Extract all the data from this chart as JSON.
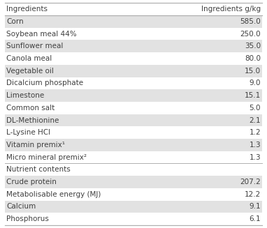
{
  "header": [
    "Ingredients",
    "Ingredients g/kg"
  ],
  "rows": [
    [
      "Corn",
      "585.0"
    ],
    [
      "Soybean meal 44%",
      "250.0"
    ],
    [
      "Sunflower meal",
      "35.0"
    ],
    [
      "Canola meal",
      "80.0"
    ],
    [
      "Vegetable oil",
      "15.0"
    ],
    [
      "Dicalcium phosphate",
      "9.0"
    ],
    [
      "Limestone",
      "15.1"
    ],
    [
      "Common salt",
      "5.0"
    ],
    [
      "DL-Methionine",
      "2.1"
    ],
    [
      "L-Lysine HCl",
      "1.2"
    ],
    [
      "Vitamin premix¹",
      "1.3"
    ],
    [
      "Micro mineral premix²",
      "1.3"
    ],
    [
      "Nutrient contents",
      ""
    ],
    [
      "Crude protein",
      "207.2"
    ],
    [
      "Metabolisable energy (MJ)",
      "12.2"
    ],
    [
      "Calcium",
      "9.1"
    ],
    [
      "Phosphorus",
      "6.1"
    ]
  ],
  "shaded_rows": [
    0,
    2,
    4,
    6,
    8,
    10,
    13,
    15
  ],
  "section_rows": [
    12
  ],
  "shade_color": "#e2e2e2",
  "header_bg": "#ffffff",
  "text_color": "#404040",
  "border_color": "#b0b0b0",
  "font_size": 7.5,
  "header_font_size": 7.5
}
